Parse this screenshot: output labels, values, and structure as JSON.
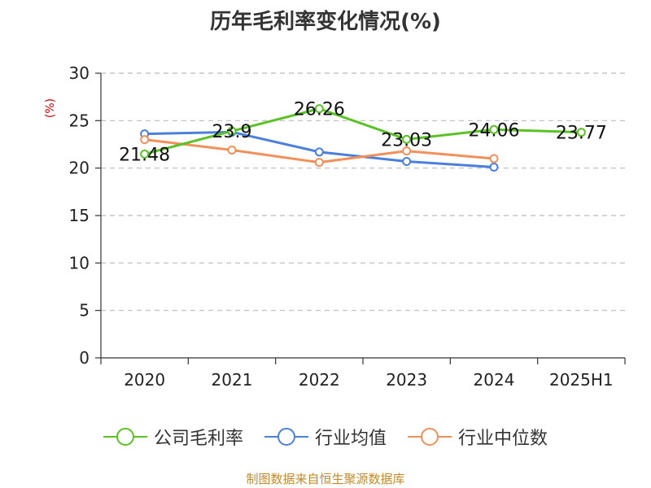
{
  "chart_data": {
    "type": "line",
    "title": "历年毛利率变化情况(%)",
    "ylabel": "(%)",
    "xlabel": "",
    "categories": [
      "2020",
      "2021",
      "2022",
      "2023",
      "2024",
      "2025H1"
    ],
    "ylim": [
      0,
      30
    ],
    "yticks": [
      0,
      5,
      10,
      15,
      20,
      25,
      30
    ],
    "grid": true,
    "legend_position": "bottom",
    "series": [
      {
        "name": "公司毛利率",
        "color": "#5bc226",
        "values": [
          21.48,
          23.9,
          26.26,
          23.03,
          24.06,
          23.77
        ],
        "labels": [
          "21.48",
          "23.9",
          "26.26",
          "23.03",
          "24.06",
          "23.77"
        ]
      },
      {
        "name": "行业均值",
        "color": "#4a7fdc",
        "values": [
          23.6,
          23.8,
          21.7,
          20.7,
          20.1,
          null
        ]
      },
      {
        "name": "行业中位数",
        "color": "#f2905a",
        "values": [
          23.0,
          21.9,
          20.6,
          21.8,
          21.0,
          null
        ]
      }
    ]
  },
  "source": "制图数据来自恒生聚源数据库",
  "colors": {
    "ylabel": "#cc0000",
    "source": "#c08a2a",
    "grid": "#bbbbbb",
    "axis": "#333333"
  }
}
